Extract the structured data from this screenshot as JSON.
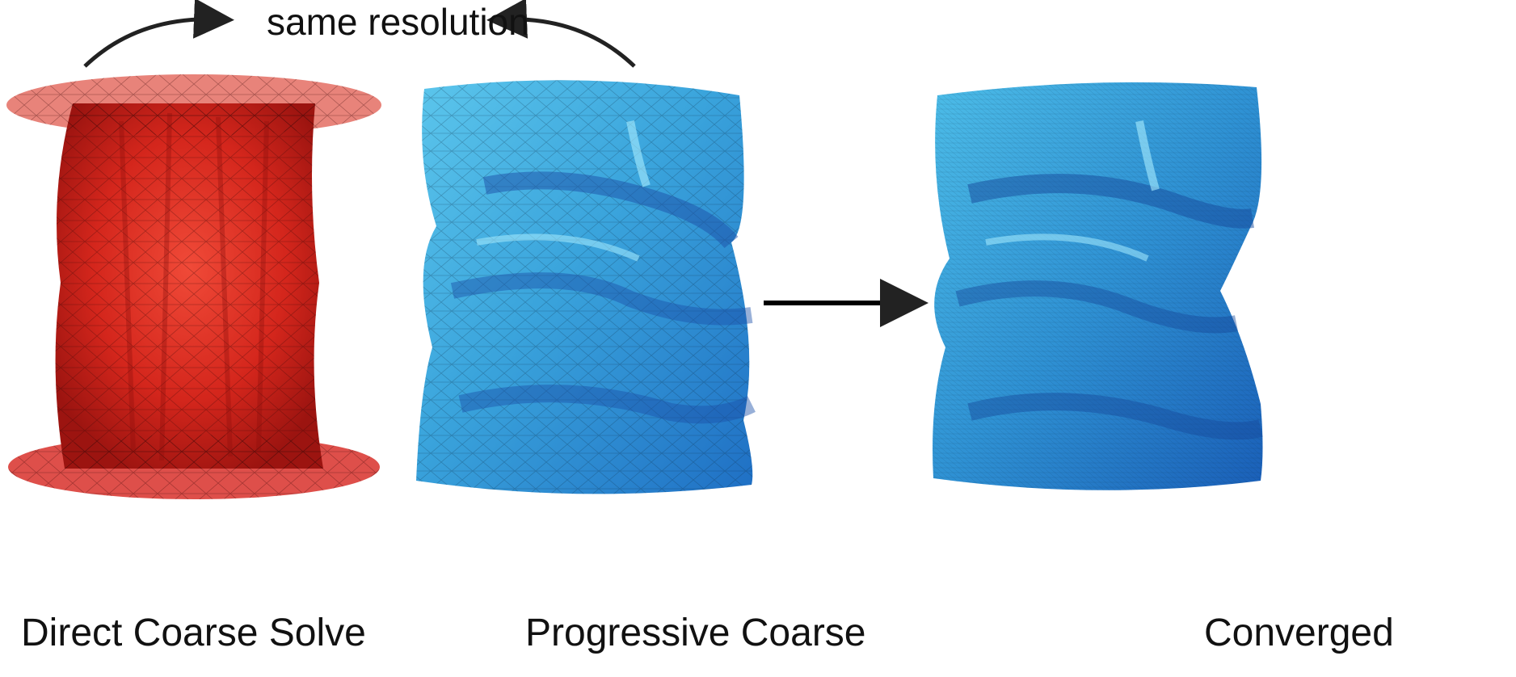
{
  "top_annotation": "same resolution",
  "panels": [
    {
      "caption": "Direct Coarse Solve",
      "color": "#d7261e"
    },
    {
      "caption": "Progressive Coarse",
      "color": "#3aa6dc"
    },
    {
      "caption": "Converged",
      "color": "#2f93d2"
    }
  ]
}
